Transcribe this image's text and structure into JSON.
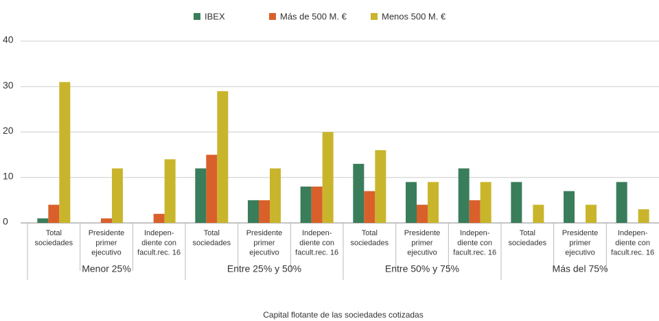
{
  "chart_data": {
    "type": "bar",
    "x_label": "Capital flotante de las sociedades cotizadas",
    "categories": [
      "Total\nsociedades",
      "Presidente\nprimer\nejecutivo",
      "Indepen-\ndiente con\nfacult.rec. 16",
      "Total\nsociedades",
      "Presidente\nprimer\nejecutivo",
      "Indepen-\ndiente con\nfacult.rec. 16",
      "Total\nsociedades",
      "Presidente\nprimer\nejecutivo",
      "Indepen-\ndiente con\nfacult.rec. 16",
      "Total\nsociedades",
      "Presidente\nprimer\nejecutivo",
      "Indepen-\ndiente con\nfacult.rec. 16"
    ],
    "category_groups": [
      "Menor 25%",
      "Entre 25% y 50%",
      "Entre 50% y 75%",
      "Más del 75%"
    ],
    "series": [
      {
        "name": "IBEX",
        "color": "#3a7d5a",
        "values": [
          1,
          0,
          0,
          12,
          5,
          8,
          13,
          9,
          12,
          9,
          7,
          9
        ]
      },
      {
        "name": "Más de 500 M. €",
        "color": "#d9602b",
        "values": [
          4,
          1,
          2,
          15,
          5,
          8,
          7,
          4,
          5,
          0,
          0,
          0
        ]
      },
      {
        "name": "Menos  500 M. €",
        "color": "#c9b52c",
        "values": [
          31,
          12,
          14,
          29,
          12,
          20,
          16,
          9,
          9,
          4,
          4,
          3
        ]
      }
    ],
    "ylim": [
      0,
      40
    ],
    "yticks": [
      0,
      10,
      20,
      30,
      40
    ],
    "grid": true,
    "legend": "top"
  }
}
